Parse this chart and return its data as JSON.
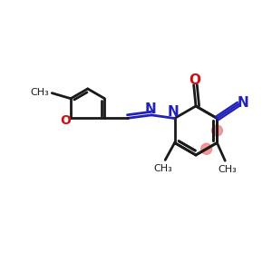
{
  "bg_color": "#ffffff",
  "bond_color": "#1a1a1a",
  "n_color": "#2222bb",
  "o_color": "#cc1111",
  "highlight_color": "#f08080",
  "lw": 2.0,
  "figsize": [
    3.0,
    3.0
  ],
  "dpi": 100,
  "xlim": [
    0,
    10
  ],
  "ylim": [
    1,
    9
  ]
}
